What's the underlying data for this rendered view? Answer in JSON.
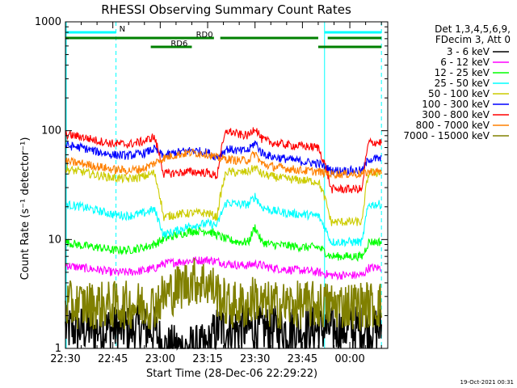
{
  "chart_data": {
    "type": "line",
    "title": "RHESSI Observing Summary Count Rates",
    "xlabel": "Start Time (28-Dec-06 22:29:22)",
    "ylabel": "Count Rate (s⁻¹ detector⁻¹)",
    "y_scale": "log",
    "ylim": [
      1,
      1000
    ],
    "xlim_minutes": [
      0,
      102
    ],
    "x_ticks": [
      {
        "label": "22:30",
        "t": 0
      },
      {
        "label": "22:45",
        "t": 15
      },
      {
        "label": "23:00",
        "t": 30
      },
      {
        "label": "23:15",
        "t": 45
      },
      {
        "label": "23:30",
        "t": 60
      },
      {
        "label": "23:45",
        "t": 75
      },
      {
        "label": "00:00",
        "t": 90
      }
    ],
    "y_ticks": [
      {
        "label": "1",
        "v": 1
      },
      {
        "label": "10",
        "v": 10
      },
      {
        "label": "100",
        "v": 100
      },
      {
        "label": "1000",
        "v": 1000
      }
    ],
    "legend_header": [
      "Det 1,3,4,5,6,9,",
      "FDecim 3, Att 0"
    ],
    "legend_position": "right",
    "flags": [
      {
        "label": "N",
        "color": "#00ffff",
        "segments": [
          [
            0,
            16
          ],
          [
            82,
            100
          ]
        ]
      },
      {
        "label": "RD0",
        "color": "#008000",
        "segments": [
          [
            0,
            47
          ],
          [
            49,
            80
          ],
          [
            83,
            100
          ]
        ]
      },
      {
        "label": "RD6",
        "color": "#008000",
        "segments": [
          [
            27,
            40
          ],
          [
            80,
            100
          ]
        ]
      }
    ],
    "vertical_markers": [
      {
        "t": 16,
        "style": "dashed",
        "color": "#00ffff"
      },
      {
        "t": 82,
        "style": "solid",
        "color": "#00ffff"
      },
      {
        "t": 100,
        "style": "dashed",
        "color": "#00ffff"
      }
    ],
    "x": [
      0,
      5,
      10,
      15,
      20,
      25,
      28,
      31,
      35,
      40,
      45,
      48,
      51,
      55,
      58,
      60,
      62,
      65,
      70,
      75,
      80,
      84,
      88,
      90,
      94,
      96,
      100
    ],
    "series": [
      {
        "name": "3 - 6 keV",
        "color": "#000000",
        "values": [
          1.5,
          1.5,
          1.5,
          1.5,
          1.5,
          1.5,
          1.5,
          1.0,
          1.0,
          1.0,
          1.0,
          1.5,
          1.5,
          1.5,
          1.5,
          1.5,
          1.5,
          1.5,
          1.5,
          1.5,
          1.5,
          1.5,
          1.5,
          1.5,
          1.5,
          1.5,
          1.5
        ]
      },
      {
        "name": "6 - 12 keV",
        "color": "#ff00ff",
        "values": [
          5.8,
          5.5,
          5.3,
          5.0,
          5.0,
          5.2,
          5.4,
          6.0,
          6.2,
          6.4,
          6.5,
          6.3,
          6.0,
          5.8,
          5.8,
          6.0,
          5.8,
          5.5,
          5.3,
          5.2,
          5.0,
          4.7,
          4.7,
          4.7,
          4.7,
          5.5,
          5.5
        ]
      },
      {
        "name": "12 - 25 keV",
        "color": "#00ff00",
        "values": [
          9.5,
          8.8,
          8.5,
          8.0,
          8.0,
          8.5,
          9.0,
          10.0,
          11.0,
          12.0,
          12.0,
          11.0,
          10.0,
          9.5,
          9.5,
          13.0,
          9.5,
          9.0,
          8.8,
          8.5,
          8.5,
          7.0,
          7.0,
          7.0,
          7.0,
          9.5,
          9.5
        ]
      },
      {
        "name": "25 - 50 keV",
        "color": "#00ffff",
        "values": [
          21,
          20,
          18.5,
          17,
          16.5,
          17.5,
          19,
          11,
          12,
          13.5,
          14,
          13.5,
          22,
          21,
          21,
          25,
          20,
          18.5,
          17.5,
          17,
          16.5,
          9.5,
          9.5,
          9.5,
          9.5,
          21,
          21
        ]
      },
      {
        "name": "50 - 100 keV",
        "color": "#cccc00",
        "values": [
          44,
          42,
          39,
          37,
          36,
          38,
          41,
          16,
          17,
          17.5,
          17.5,
          16,
          42,
          41,
          42,
          46,
          40,
          38,
          36,
          35,
          34,
          14.5,
          14.5,
          14.5,
          14.5,
          41,
          41
        ]
      },
      {
        "name": "100 - 300 keV",
        "color": "#0000ff",
        "values": [
          73,
          70,
          64,
          60,
          59,
          62,
          68,
          58,
          63,
          66,
          63,
          57,
          68,
          65,
          66,
          78,
          63,
          58,
          55,
          52,
          50,
          43,
          43,
          43,
          43,
          55,
          55
        ]
      },
      {
        "name": "300 - 800 keV",
        "color": "#ff0000",
        "values": [
          92,
          88,
          81,
          76,
          75,
          80,
          88,
          40,
          41,
          42,
          41,
          38,
          100,
          92,
          90,
          108,
          84,
          78,
          74,
          72,
          70,
          29,
          29,
          29,
          29,
          78,
          78
        ]
      },
      {
        "name": "800 - 7000 keV",
        "color": "#ff8000",
        "values": [
          52,
          50,
          47,
          44,
          43,
          45,
          50,
          56,
          60,
          63,
          61,
          56,
          55,
          53,
          54,
          62,
          50,
          47,
          45,
          43,
          42,
          40,
          40,
          40,
          40,
          42,
          42
        ]
      },
      {
        "name": "7000 - 15000 keV",
        "color": "#808000",
        "values": [
          2.5,
          2.5,
          2.5,
          2.5,
          2.5,
          2.5,
          2.5,
          3.0,
          3.5,
          4.2,
          4.0,
          3.2,
          2.5,
          2.5,
          2.5,
          3.0,
          2.5,
          2.5,
          2.5,
          2.5,
          2.5,
          2.5,
          2.5,
          2.5,
          2.5,
          2.5,
          2.5
        ]
      }
    ]
  },
  "timestamp": "19-Oct-2021 00:31"
}
